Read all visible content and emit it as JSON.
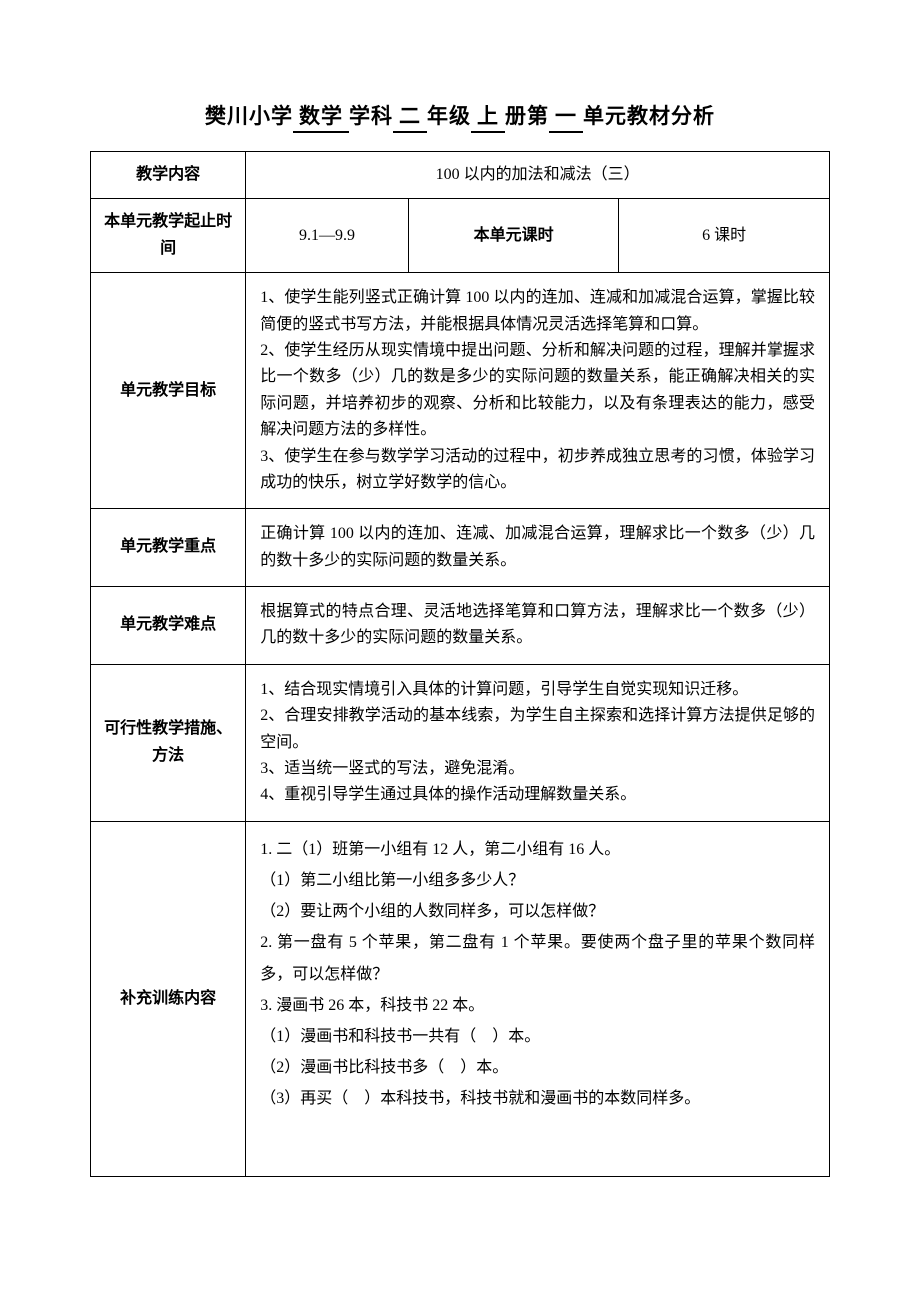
{
  "title": {
    "school": "樊川小学",
    "subject": "数学",
    "subject_suffix": "学科",
    "grade": "二",
    "grade_suffix": "年级",
    "volume": "上",
    "volume_suffix": "册第",
    "unit": "一",
    "unit_suffix": "单元教材分析"
  },
  "rows": {
    "r1": {
      "label": "教学内容",
      "value": "100 以内的加法和减法（三）"
    },
    "r2": {
      "label": "本单元教学起止时间",
      "date": "9.1—9.9",
      "period_label": "本单元课时",
      "period_value": "6 课时"
    },
    "r3": {
      "label": "单元教学目标",
      "lines": [
        "1、使学生能列竖式正确计算 100 以内的连加、连减和加减混合运算，掌握比较简便的竖式书写方法，并能根据具体情况灵活选择笔算和口算。",
        "2、使学生经历从现实情境中提出问题、分析和解决问题的过程，理解并掌握求比一个数多（少）几的数是多少的实际问题的数量关系，能正确解决相关的实际问题，并培养初步的观察、分析和比较能力，以及有条理表达的能力，感受解决问题方法的多样性。",
        "3、使学生在参与数学学习活动的过程中，初步养成独立思考的习惯，体验学习成功的快乐，树立学好数学的信心。"
      ]
    },
    "r4": {
      "label": "单元教学重点",
      "text": "正确计算 100 以内的连加、连减、加减混合运算，理解求比一个数多（少）几的数十多少的实际问题的数量关系。"
    },
    "r5": {
      "label": "单元教学难点",
      "text": "根据算式的特点合理、灵活地选择笔算和口算方法，理解求比一个数多（少）几的数十多少的实际问题的数量关系。"
    },
    "r6": {
      "label": "可行性教学措施、方法",
      "lines": [
        "1、结合现实情境引入具体的计算问题，引导学生自觉实现知识迁移。",
        "2、合理安排教学活动的基本线索，为学生自主探索和选择计算方法提供足够的空间。",
        "3、适当统一竖式的写法，避免混淆。",
        "4、重视引导学生通过具体的操作活动理解数量关系。"
      ]
    },
    "r7": {
      "label": "补充训练内容",
      "lines": [
        "1. 二（1）班第一小组有 12 人，第二小组有 16 人。",
        "（1）第二小组比第一小组多多少人？",
        "（2）要让两个小组的人数同样多，可以怎样做？",
        "2. 第一盘有 5 个苹果，第二盘有 1 个苹果。要使两个盘子里的苹果个数同样多，可以怎样做？",
        "3. 漫画书 26 本，科技书 22 本。",
        "（1）漫画书和科技书一共有（　）本。",
        "（2）漫画书比科技书多（　）本。",
        "（3）再买（　）本科技书，科技书就和漫画书的本数同样多。"
      ]
    }
  },
  "layout": {
    "col_widths": [
      "21%",
      "22%",
      "28.5%",
      "28.5%"
    ],
    "r7_minheight": "330px"
  }
}
